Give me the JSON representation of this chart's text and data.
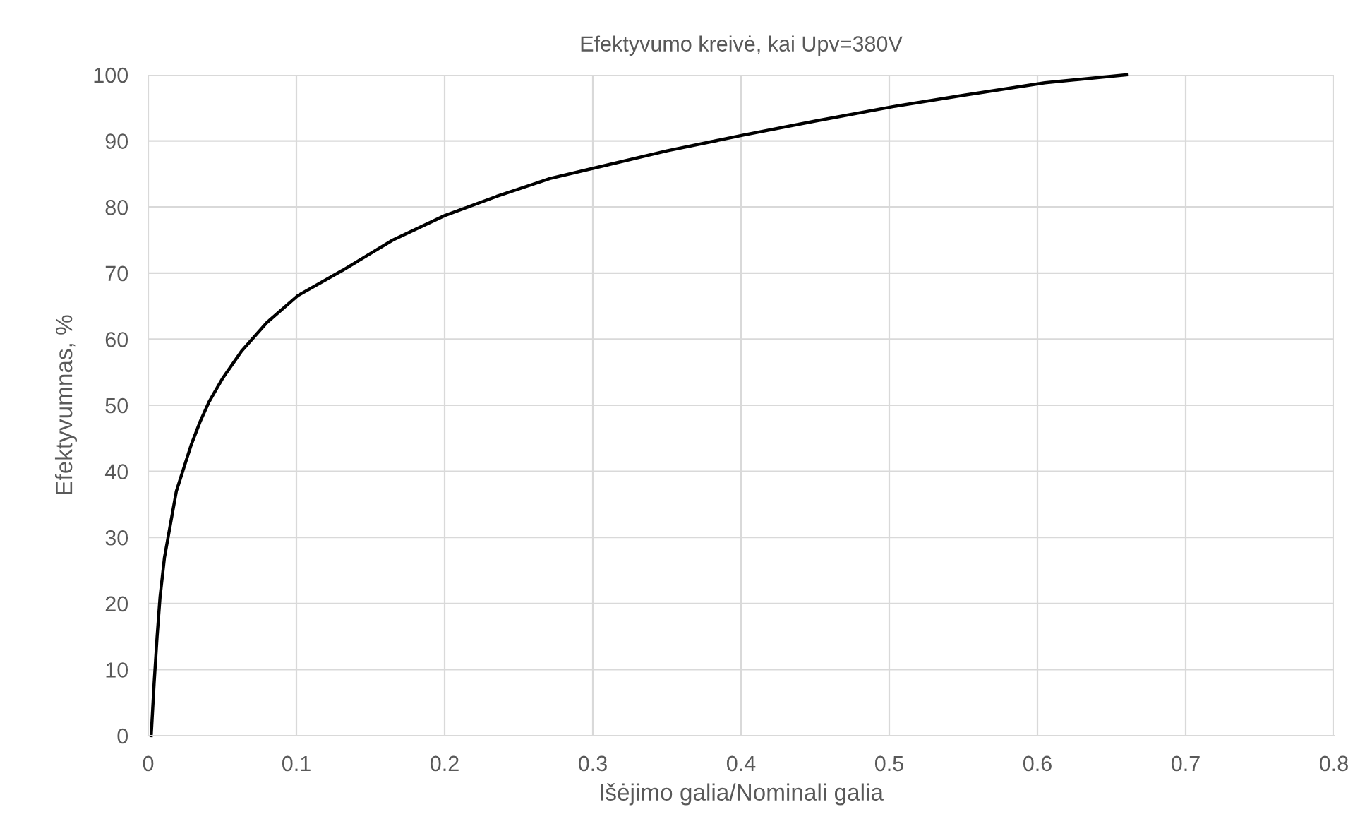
{
  "chart_data": {
    "type": "line",
    "title": "Efektyvumo kreivė, kai Upv=380V",
    "xlabel": "Išėjimo galia/Nominali galia",
    "ylabel": "Efektyvumnas, %",
    "series": [
      {
        "color": "#000000",
        "x": [
          0.002,
          0.004,
          0.006,
          0.008,
          0.011,
          0.015,
          0.019,
          0.024,
          0.029,
          0.035,
          0.041,
          0.05,
          0.063,
          0.08,
          0.101,
          0.131,
          0.165,
          0.2,
          0.235,
          0.271,
          0.301,
          0.35,
          0.402,
          0.45,
          0.503,
          0.55,
          0.605,
          0.66
        ],
        "values": [
          0,
          8,
          15,
          21,
          27,
          32,
          37,
          40.5,
          44,
          47.5,
          50.5,
          54,
          58.2,
          62.5,
          66.6,
          70.4,
          75,
          78.7,
          81.6,
          84.3,
          85.9,
          88.5,
          90.9,
          93,
          95.2,
          96.9,
          98.8,
          100
        ]
      }
    ],
    "xlim": [
      0,
      0.8
    ],
    "ylim": [
      0,
      100
    ],
    "xticks": [
      0,
      0.1,
      0.2,
      0.3,
      0.4,
      0.5,
      0.6,
      0.7,
      0.8
    ],
    "yticks": [
      0,
      10,
      20,
      30,
      40,
      50,
      60,
      70,
      80,
      90,
      100
    ],
    "grid": true,
    "marker": "none",
    "line_style": "solid"
  }
}
